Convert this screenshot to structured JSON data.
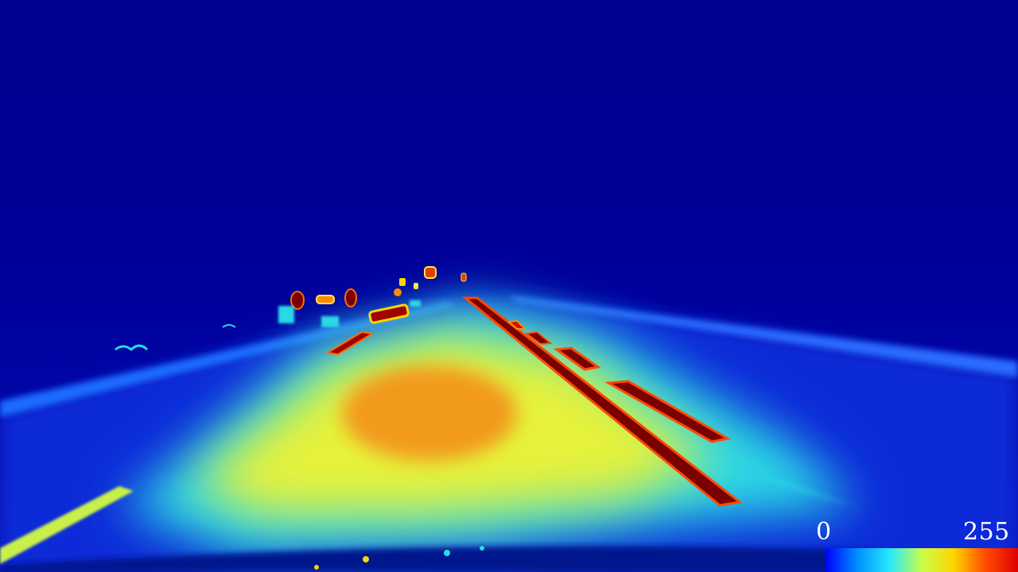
{
  "image": {
    "kind": "thermal-style false-color render of a night road seen from a car dashboard",
    "colormap": "jet",
    "colors": {
      "background_sky": "#00008f",
      "road_glow_core": "#f29a1a",
      "road_glow_mid": "#f5f03a",
      "road_glow_outer": "#2bd8e6",
      "lane_marking_hot": "#7a0000"
    }
  },
  "colorbar": {
    "min_label": "0",
    "max_label": "255",
    "stops": [
      "#0000ff",
      "#0090ff",
      "#28e8ff",
      "#c8ff4a",
      "#ffd400",
      "#ff4a00",
      "#e00000"
    ]
  }
}
